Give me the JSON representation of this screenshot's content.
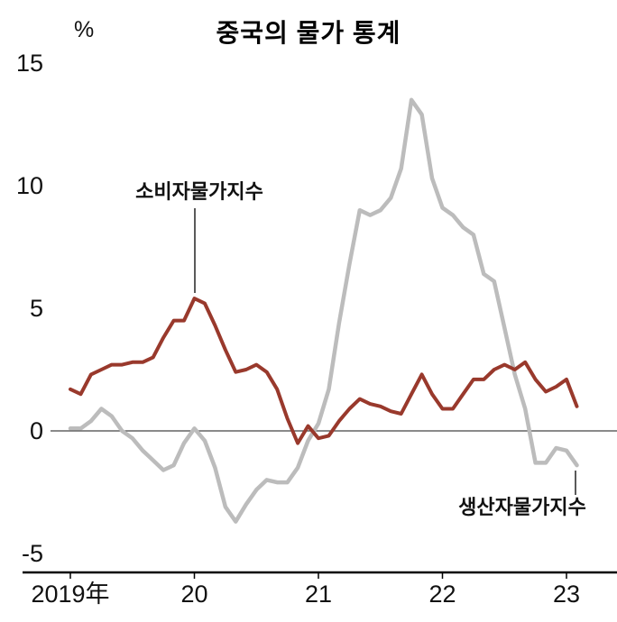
{
  "chart_data": {
    "type": "line",
    "title": "중국의 물가 통계",
    "ylabel": "%",
    "xlabel": "",
    "ylim": [
      -5,
      15
    ],
    "y_ticks": [
      15,
      10,
      5,
      0,
      -5
    ],
    "x_tick_labels": [
      "2019年",
      "20",
      "21",
      "22",
      "23"
    ],
    "x_frequency": "monthly",
    "x_range": [
      "2019-01",
      "2023-02"
    ],
    "grid": false,
    "zero_line": true,
    "axis_color": "#000000",
    "text_color": "#111111",
    "series": [
      {
        "id": "cpi",
        "name": "소비자물가지수",
        "color": "#99392c",
        "width": 4,
        "values": [
          1.7,
          1.5,
          2.3,
          2.5,
          2.7,
          2.7,
          2.8,
          2.8,
          3.0,
          3.8,
          4.5,
          4.5,
          5.4,
          5.2,
          4.3,
          3.3,
          2.4,
          2.5,
          2.7,
          2.4,
          1.7,
          0.5,
          -0.5,
          0.2,
          -0.3,
          -0.2,
          0.4,
          0.9,
          1.3,
          1.1,
          1.0,
          0.8,
          0.7,
          1.5,
          2.3,
          1.5,
          0.9,
          0.9,
          1.5,
          2.1,
          2.1,
          2.5,
          2.7,
          2.5,
          2.8,
          2.1,
          1.6,
          1.8,
          2.1,
          1.0
        ]
      },
      {
        "id": "ppi",
        "name": "생산자물가지수",
        "color": "#bcbcbc",
        "width": 4.5,
        "values": [
          0.1,
          0.1,
          0.4,
          0.9,
          0.6,
          0.0,
          -0.3,
          -0.8,
          -1.2,
          -1.6,
          -1.4,
          -0.5,
          0.1,
          -0.4,
          -1.5,
          -3.1,
          -3.7,
          -3.0,
          -2.4,
          -2.0,
          -2.1,
          -2.1,
          -1.5,
          -0.4,
          0.3,
          1.7,
          4.4,
          6.8,
          9.0,
          8.8,
          9.0,
          9.5,
          10.7,
          13.5,
          12.9,
          10.3,
          9.1,
          8.8,
          8.3,
          8.0,
          6.4,
          6.1,
          4.2,
          2.3,
          0.9,
          -1.3,
          -1.3,
          -0.7,
          -0.8,
          -1.4
        ]
      }
    ],
    "annotations": [
      {
        "id": "cpi",
        "text": "소비자물가지수"
      },
      {
        "id": "ppi",
        "text": "생산자물가지수"
      }
    ]
  }
}
